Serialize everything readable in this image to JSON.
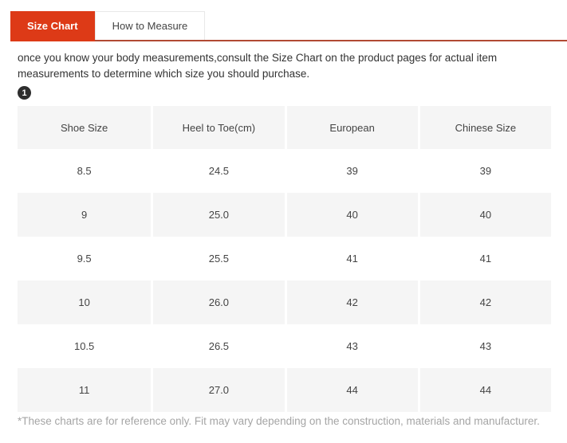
{
  "tabs": {
    "size_chart": "Size Chart",
    "how_to_measure": "How to Measure"
  },
  "intro": "once you know your body measurements,consult the Size Chart on the product pages for actual item measurements to determine which size you should purchase.",
  "step_badge": "1",
  "table": {
    "headers": [
      "Shoe Size",
      "Heel to Toe(cm)",
      "European",
      "Chinese Size"
    ],
    "rows": [
      [
        "8.5",
        "24.5",
        "39",
        "39"
      ],
      [
        "9",
        "25.0",
        "40",
        "40"
      ],
      [
        "9.5",
        "25.5",
        "41",
        "41"
      ],
      [
        "10",
        "26.0",
        "42",
        "42"
      ],
      [
        "10.5",
        "26.5",
        "43",
        "43"
      ],
      [
        "11",
        "27.0",
        "44",
        "44"
      ]
    ]
  },
  "footnote": "*These charts are for reference only. Fit may vary depending on the construction, materials and manufacturer.",
  "colors": {
    "accent_red": "#dd3a17",
    "tab_underline": "#b14a33",
    "row_alt_bg": "#f5f5f5",
    "badge_bg": "#2e2e2e",
    "footnote_text": "#a5a5a5"
  }
}
